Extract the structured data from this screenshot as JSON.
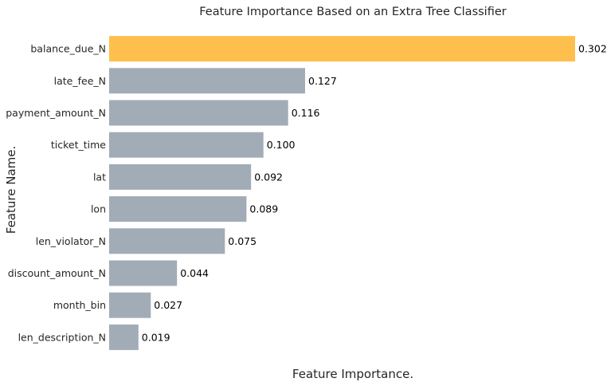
{
  "chart_data": {
    "type": "bar",
    "orientation": "horizontal",
    "title": "Feature Importance Based on an Extra Tree Classifier",
    "xlabel": "Feature Importance.",
    "ylabel": "Feature Name.",
    "categories": [
      "balance_due_N",
      "late_fee_N",
      "payment_amount_N",
      "ticket_time",
      "lat",
      "lon",
      "len_violator_N",
      "discount_amount_N",
      "month_bin",
      "len_description_N"
    ],
    "values": [
      0.302,
      0.127,
      0.116,
      0.1,
      0.092,
      0.089,
      0.075,
      0.044,
      0.027,
      0.019
    ],
    "value_labels": [
      "0.302",
      "0.127",
      "0.116",
      "0.100",
      "0.092",
      "0.089",
      "0.075",
      "0.044",
      "0.027",
      "0.019"
    ],
    "xlim": [
      0,
      0.302
    ],
    "highlight_index": 0,
    "highlight_color": "#FFBF4D",
    "bar_color": "#A1ACB7",
    "grid": false,
    "x_ticks_visible": false
  }
}
